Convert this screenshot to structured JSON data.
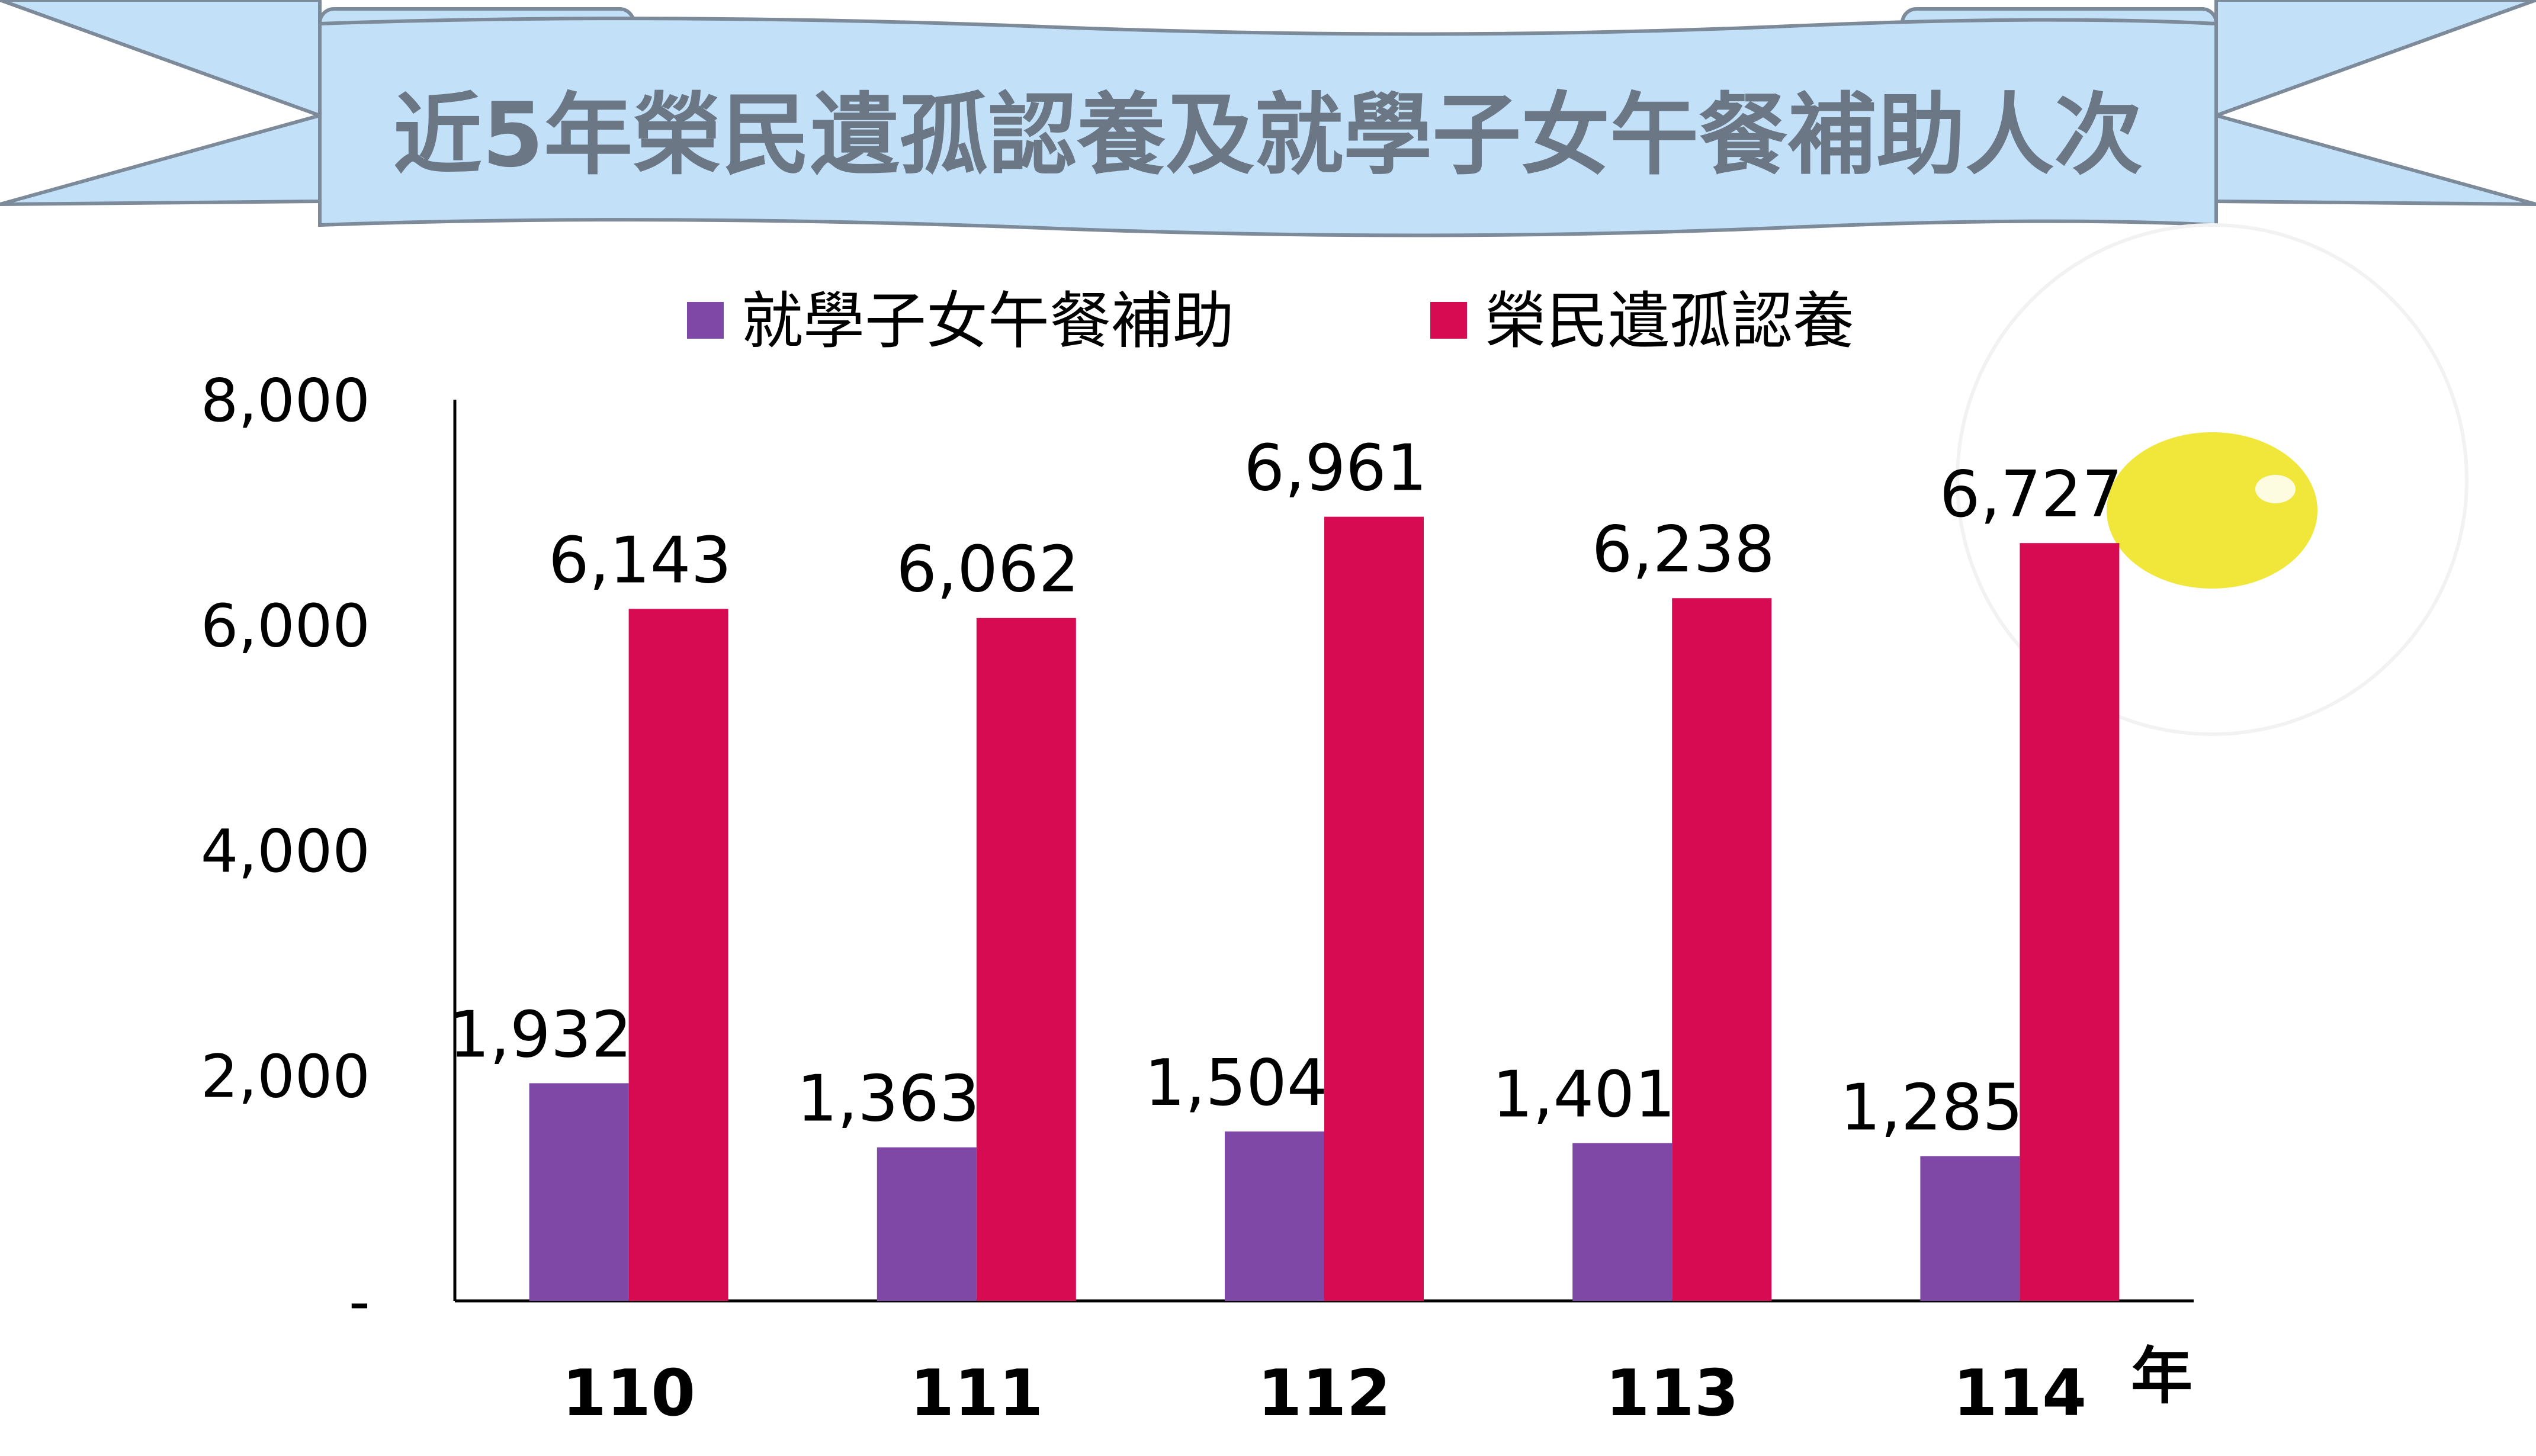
{
  "chart_data": {
    "type": "bar",
    "title": "近5年榮民遺孤認養及就學子女午餐補助人次",
    "categories": [
      "110",
      "111",
      "112",
      "113",
      "114"
    ],
    "x_unit": "年",
    "series": [
      {
        "name": "就學子女午餐補助",
        "color": "#7f48a6",
        "values": [
          1932,
          1363,
          1504,
          1401,
          1285
        ],
        "labels": [
          "1,932",
          "1,363",
          "1,504",
          "1,401",
          "1,285"
        ]
      },
      {
        "name": "榮民遺孤認養",
        "color": "#d60b51",
        "values": [
          6143,
          6062,
          6961,
          6238,
          6727
        ],
        "labels": [
          "6,143",
          "6,062",
          "6,961",
          "6,238",
          "6,727"
        ]
      }
    ],
    "ylim": [
      0,
      8000
    ],
    "yticks": [
      {
        "value": 0,
        "label": "-"
      },
      {
        "value": 2000,
        "label": "2,000"
      },
      {
        "value": 4000,
        "label": "4,000"
      },
      {
        "value": 6000,
        "label": "6,000"
      },
      {
        "value": 8000,
        "label": "8,000"
      }
    ],
    "legend_position": "top-center",
    "grid": false
  },
  "colors": {
    "banner_fill": "#c2e1f8",
    "banner_stroke": "#7d8a99",
    "title_text": "#6b7785",
    "decoration_yellow": "#f0e73a"
  }
}
